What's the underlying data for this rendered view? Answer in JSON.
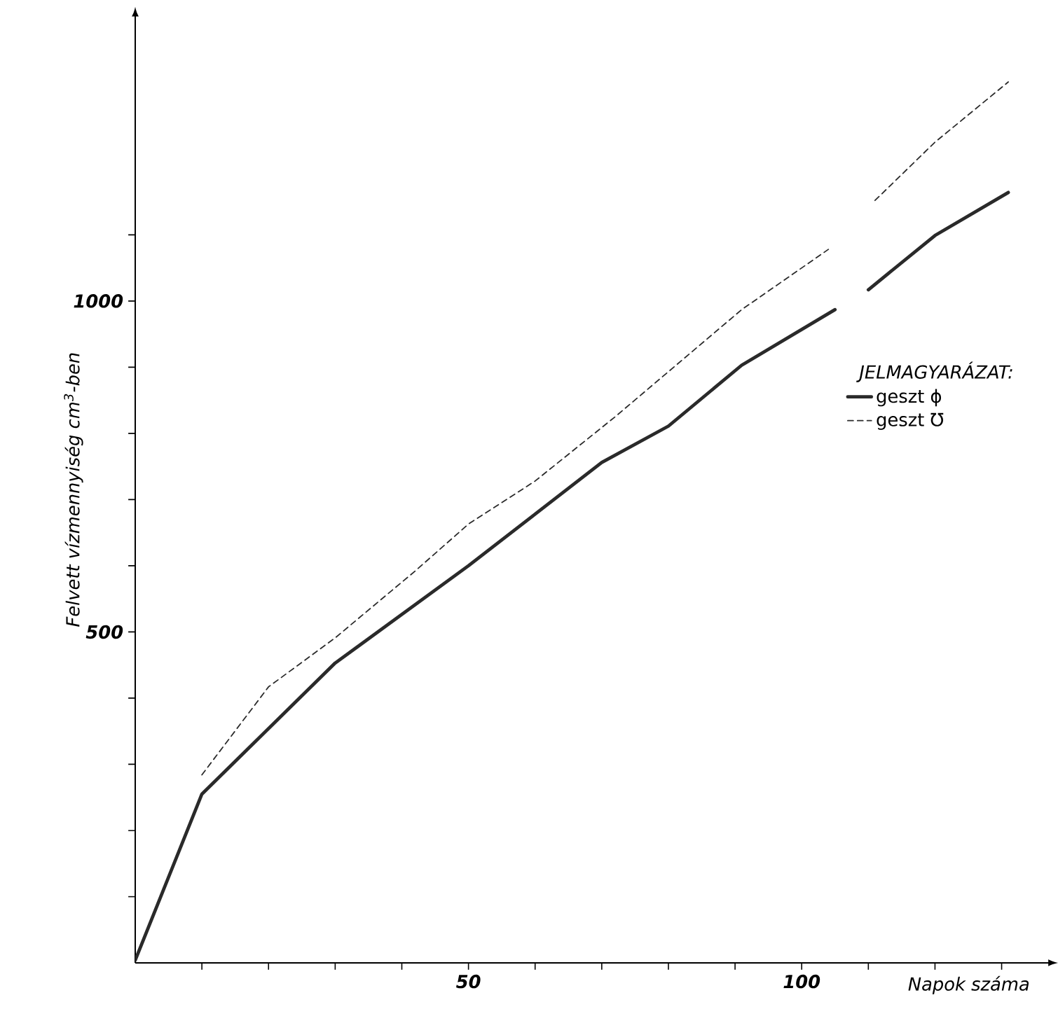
{
  "chart_data": {
    "type": "line",
    "xlabel": "Napok száma",
    "ylabel": "Felvett vízmennyiség cm$^{3}$-ben",
    "legend_title": "JELMAGYARÁZAT:",
    "series": [
      {
        "name": "geszt ϕ",
        "color": "#2a2a2a",
        "line_style": "solid",
        "x": [
          0,
          10,
          30,
          50,
          70,
          80,
          91,
          105,
          107,
          110,
          120,
          131
        ],
        "values": [
          4,
          255,
          453,
          600,
          756,
          811,
          903,
          987,
          null,
          1017,
          1099,
          1164
        ]
      },
      {
        "name": "geszt ℧",
        "color": "#2a2a2a",
        "line_style": "dashed",
        "x": [
          10,
          20,
          30,
          42,
          50,
          60,
          72,
          91,
          104,
          107,
          111,
          120,
          131
        ],
        "values": [
          284,
          417,
          491,
          592,
          663,
          728,
          825,
          987,
          1078,
          null,
          1152,
          1240,
          1331
        ]
      }
    ],
    "xlim": [
      0,
      137
    ],
    "ylim": [
      0,
      1430
    ],
    "xticks": [
      {
        "value": 10,
        "label": null
      },
      {
        "value": 20,
        "label": null
      },
      {
        "value": 30,
        "label": null
      },
      {
        "value": 40,
        "label": null
      },
      50,
      {
        "value": 60,
        "label": null
      },
      {
        "value": 70,
        "label": null
      },
      {
        "value": 80,
        "label": null
      },
      {
        "value": 90,
        "label": null
      },
      100,
      {
        "value": 110,
        "label": null
      },
      {
        "value": 120,
        "label": null
      },
      {
        "value": 130,
        "label": null
      }
    ],
    "yticks": [
      {
        "value": 100,
        "label": null
      },
      {
        "value": 200,
        "label": null
      },
      {
        "value": 300,
        "label": null
      },
      {
        "value": 400,
        "label": null
      },
      500,
      {
        "value": 600,
        "label": null
      },
      {
        "value": 700,
        "label": null
      },
      {
        "value": 800,
        "label": null
      },
      {
        "value": 900,
        "label": null
      },
      1000,
      {
        "value": 1100,
        "label": null
      }
    ],
    "grid": false,
    "legend": "right",
    "marker": "none"
  }
}
